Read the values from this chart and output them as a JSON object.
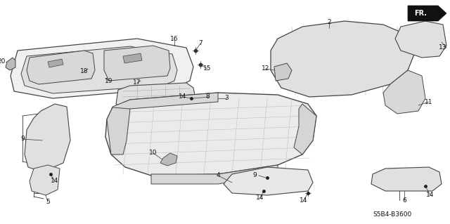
{
  "bg_color": "#ffffff",
  "fig_width": 6.4,
  "fig_height": 3.19,
  "dpi": 100,
  "diagram_code": "S5B4-B3600",
  "fr_label": "FR.",
  "edge_color": "#444444",
  "fill_color": "#e8e8e8",
  "hatch_color": "#888888",
  "text_color": "#111111",
  "font_size": 6.5,
  "lw": 0.7
}
